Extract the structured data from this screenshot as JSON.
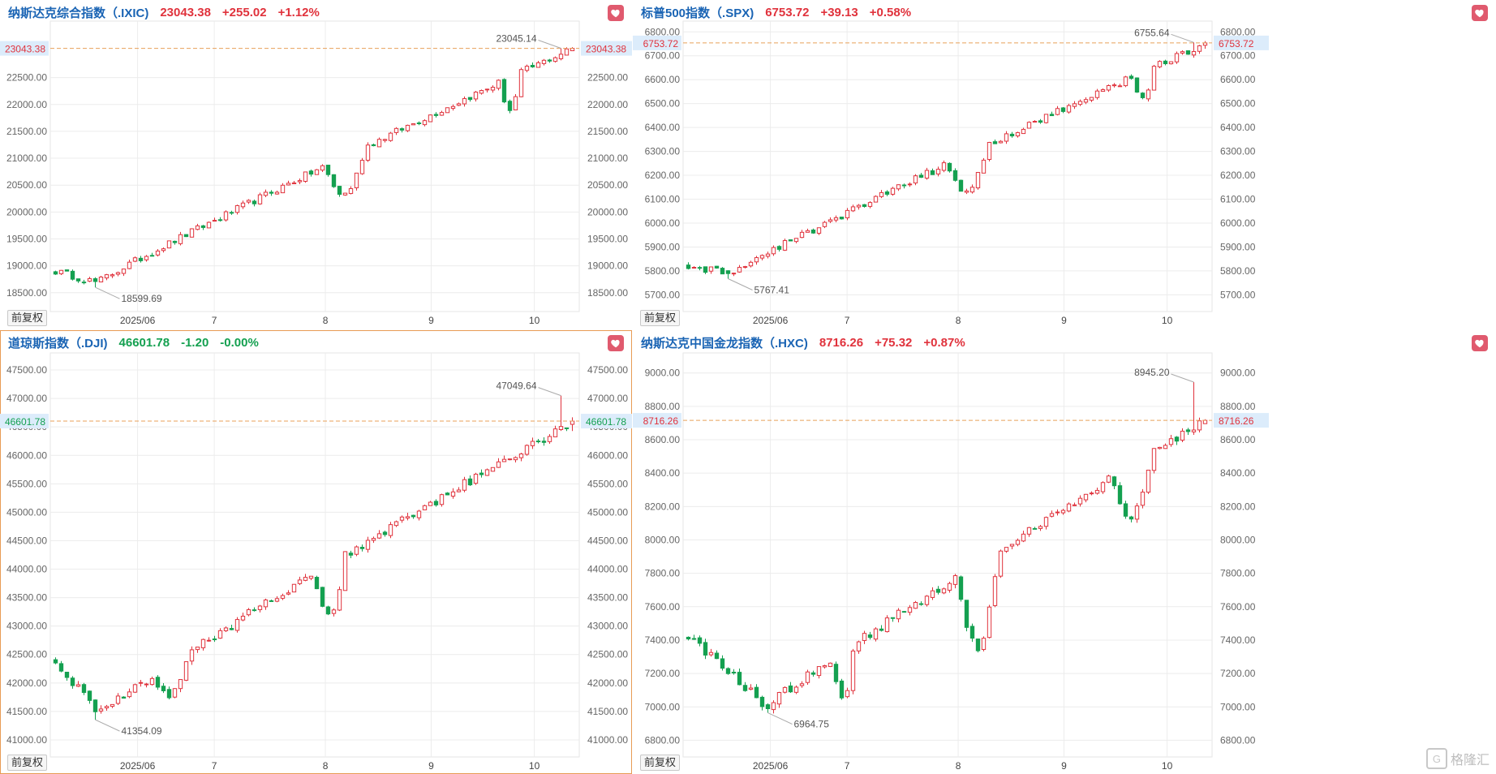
{
  "colors": {
    "up": "#e0323c",
    "down": "#14a050",
    "title": "#1a64b4",
    "grid": "#ececec",
    "last_line": "#e8a15a",
    "price_tag_bg": "#dcecfb"
  },
  "adjust_label": "前复权",
  "watermark": {
    "text": "格隆汇",
    "icon": "gelonghui-logo-icon"
  },
  "x_labels": [
    "2025/06",
    "7",
    "8",
    "9",
    "10"
  ],
  "panels": [
    {
      "id": "ixic",
      "title": "纳斯达克综合指数（.IXIC)",
      "last": "23043.38",
      "change": "+255.02",
      "pct": "+1.12%",
      "direction": "up",
      "selected": false,
      "y_ticks": [
        "18500.00",
        "19000.00",
        "19500.00",
        "20000.00",
        "20500.00",
        "21000.00",
        "21500.00",
        "22000.00",
        "22500.00"
      ],
      "high_label": "23045.14",
      "low_label": "18599.69",
      "last_tag": "23043.38",
      "chart_data": {
        "type": "candlestick",
        "ylim": [
          18150,
          23550
        ],
        "start": 18900,
        "low": 18599.69,
        "high": 23045.14,
        "last": 23043.38,
        "dip_at": 0.08,
        "pullbacks": [
          [
            0.52,
            0.6,
            700
          ],
          [
            0.86,
            0.9,
            600
          ]
        ]
      }
    },
    {
      "id": "spx",
      "title": "标普500指数（.SPX)",
      "last": "6753.72",
      "change": "+39.13",
      "pct": "+0.58%",
      "direction": "up",
      "selected": false,
      "y_ticks": [
        "5700.00",
        "5800.00",
        "5900.00",
        "6000.00",
        "6100.00",
        "6200.00",
        "6300.00",
        "6400.00",
        "6500.00",
        "6600.00",
        "6700.00",
        "6800.00"
      ],
      "high_label": "6755.64",
      "low_label": "5767.41",
      "last_tag": "6753.72",
      "chart_data": {
        "type": "candlestick",
        "ylim": [
          5630,
          6845
        ],
        "start": 5820,
        "low": 5767.41,
        "high": 6755.64,
        "last": 6753.72,
        "dip_at": 0.08,
        "pullbacks": [
          [
            0.5,
            0.58,
            150
          ],
          [
            0.86,
            0.9,
            120
          ]
        ]
      }
    },
    {
      "id": "dji",
      "title": "道琼斯指数（.DJI)",
      "last": "46601.78",
      "change": "-1.20",
      "pct": "-0.00%",
      "direction": "down",
      "selected": true,
      "y_ticks": [
        "41000.00",
        "41500.00",
        "42000.00",
        "42500.00",
        "43000.00",
        "43500.00",
        "44000.00",
        "44500.00",
        "45000.00",
        "45500.00",
        "46000.00",
        "46500.00",
        "47000.00",
        "47500.00"
      ],
      "high_label": "47049.64",
      "low_label": "41354.09",
      "last_tag": "46601.78",
      "chart_data": {
        "type": "candlestick",
        "ylim": [
          40700,
          47800
        ],
        "start": 42400,
        "low": 41354.09,
        "high": 47049.64,
        "last": 46601.78,
        "dip_at": 0.08,
        "pullbacks": [
          [
            0.18,
            0.26,
            500
          ],
          [
            0.5,
            0.56,
            900
          ]
        ]
      }
    },
    {
      "id": "hxc",
      "title": "纳斯达克中国金龙指数（.HXC)",
      "last": "8716.26",
      "change": "+75.32",
      "pct": "+0.87%",
      "direction": "up",
      "selected": false,
      "y_ticks": [
        "6800.00",
        "7000.00",
        "7200.00",
        "7400.00",
        "7600.00",
        "7800.00",
        "8000.00",
        "8200.00",
        "8400.00",
        "8600.00",
        "8800.00",
        "9000.00"
      ],
      "high_label": "8945.20",
      "low_label": "6964.75",
      "last_tag": "8716.26",
      "chart_data": {
        "type": "candlestick",
        "ylim": [
          6700,
          9120
        ],
        "start": 7420,
        "low": 6964.75,
        "high": 8945.2,
        "last": 8716.26,
        "dip_at": 0.15,
        "pullbacks": [
          [
            0.28,
            0.32,
            300
          ],
          [
            0.52,
            0.6,
            500
          ],
          [
            0.82,
            0.9,
            300
          ]
        ]
      }
    }
  ]
}
